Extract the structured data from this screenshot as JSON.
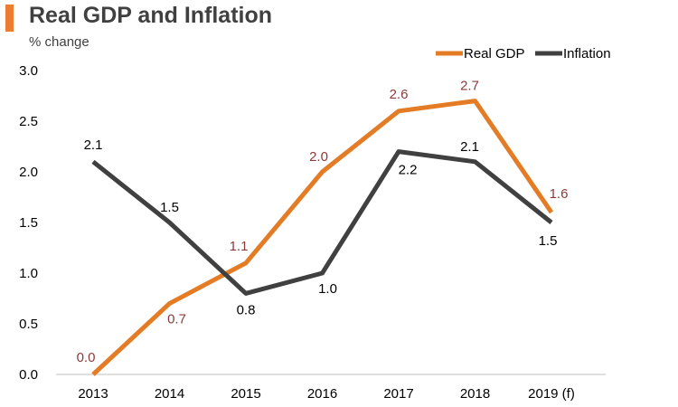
{
  "header": {
    "title": "Real GDP and Inflation",
    "subtitle": "% change"
  },
  "colors": {
    "accent": "#ED7D31",
    "real_gdp": "#E47B25",
    "inflation": "#404040",
    "gdp_label": "#8B3A3A",
    "inflation_label": "#000000"
  },
  "chart_data": {
    "type": "line",
    "title": "Real GDP and Inflation",
    "ylabel": "% change",
    "xlabel": "",
    "categories": [
      "2013",
      "2014",
      "2015",
      "2016",
      "2017",
      "2018",
      "2019 (f)"
    ],
    "ylim": [
      0,
      3.0
    ],
    "yticks": [
      "0.0",
      "0.5",
      "1.0",
      "1.5",
      "2.0",
      "2.5",
      "3.0"
    ],
    "grid": false,
    "legend_position": "top-right",
    "series": [
      {
        "name": "Real GDP",
        "values": [
          0.0,
          0.7,
          1.1,
          2.0,
          2.6,
          2.7,
          1.6
        ],
        "labels": [
          "0.0",
          "0.7",
          "1.1",
          "2.0",
          "2.6",
          "2.7",
          "1.6"
        ]
      },
      {
        "name": "Inflation",
        "values": [
          2.1,
          1.5,
          0.8,
          1.0,
          2.2,
          2.1,
          1.5
        ],
        "labels": [
          "2.1",
          "1.5",
          "0.8",
          "1.0",
          "2.2",
          "2.1",
          "1.5"
        ]
      }
    ]
  }
}
